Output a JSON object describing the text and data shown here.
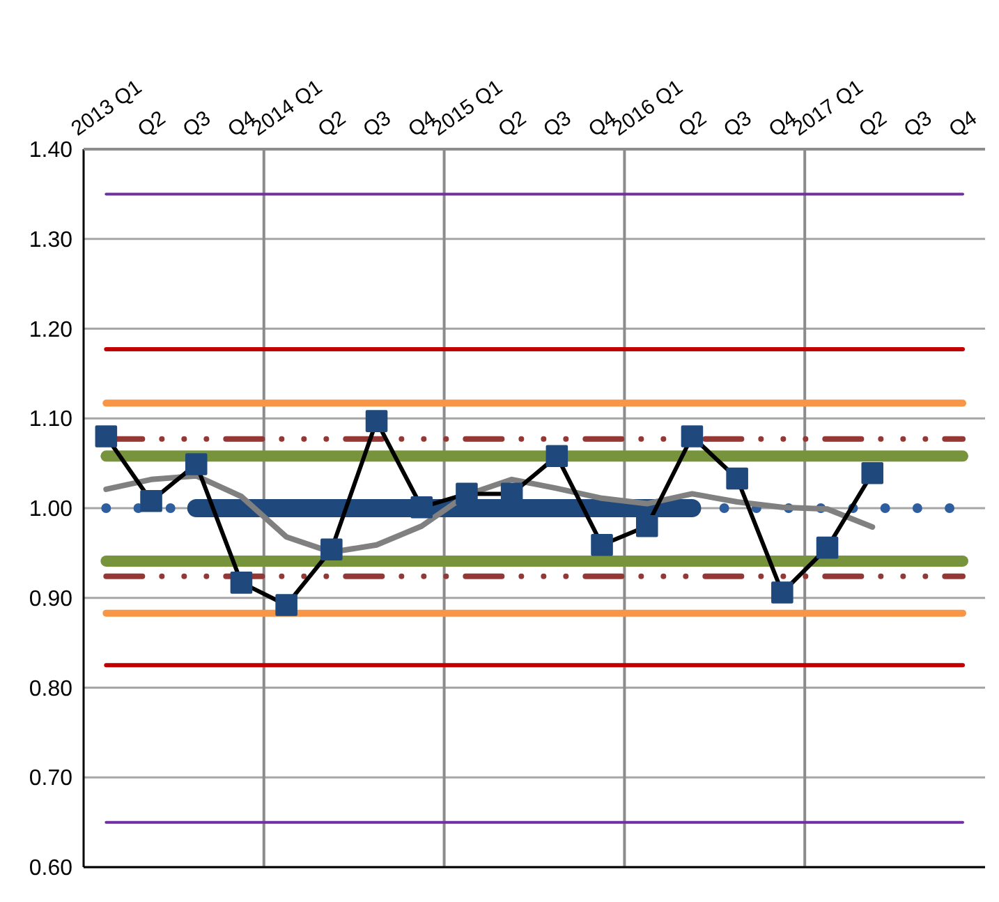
{
  "chart_data": {
    "type": "line",
    "categories": [
      "2013 Q1",
      "Q2",
      "Q3",
      "Q4",
      "2014 Q1",
      "Q2",
      "Q3",
      "Q4",
      "2015 Q1",
      "Q2",
      "Q3",
      "Q4",
      "2016 Q1",
      "Q2",
      "Q3",
      "Q4",
      "2017 Q1",
      "Q2",
      "Q3",
      "Q4"
    ],
    "series": [
      {
        "color": "#2e5e9e",
        "line_style": "dotted",
        "values": [
          1,
          1,
          1,
          null,
          null,
          null,
          null,
          null,
          null,
          null,
          null,
          null,
          null,
          1,
          1,
          1,
          1,
          1,
          1,
          1
        ]
      },
      {
        "color": "#1f497d",
        "line_style": "solid",
        "values": [
          null,
          null,
          1,
          1,
          1,
          1,
          1,
          1,
          1,
          1,
          1,
          1,
          1,
          1,
          null,
          null,
          null,
          null,
          null,
          null
        ]
      },
      {
        "color": "#808080",
        "line_style": "solid",
        "values": [
          1.021,
          1.032,
          1.036,
          1.013,
          0.968,
          0.951,
          0.959,
          0.98,
          1.015,
          1.032,
          1.022,
          1.011,
          1.005,
          1.016,
          1.007,
          1.001,
          0.999,
          0.979,
          null,
          null
        ]
      },
      {
        "color": "#000000",
        "line_style": "solid",
        "values": [
          1.08,
          1.008,
          1.049,
          0.917,
          0.892,
          0.954,
          1.097,
          1.001,
          1.016,
          1.016,
          1.058,
          0.959,
          0.98,
          1.08,
          1.033,
          0.906,
          0.956,
          1.039,
          null,
          null
        ]
      },
      {
        "type": "scatter",
        "color": "#1f497d",
        "marker": "square",
        "values": [
          1.08,
          1.008,
          1.049,
          0.917,
          0.892,
          0.954,
          1.097,
          1.001,
          1.016,
          1.016,
          1.058,
          0.959,
          0.98,
          1.08,
          1.033,
          0.906,
          0.956,
          1.039,
          null,
          null
        ]
      }
    ],
    "ylim": [
      0.6,
      1.4
    ],
    "yticks": [
      {
        "value": 0.6,
        "label": "0.60"
      },
      {
        "value": 0.7,
        "label": "0.70"
      },
      {
        "value": 0.8,
        "label": "0.80"
      },
      {
        "value": 0.9,
        "label": "0.90"
      },
      {
        "value": 1.0,
        "label": "1.00"
      },
      {
        "value": 1.1,
        "label": "1.10"
      },
      {
        "value": 1.2,
        "label": "1.20"
      },
      {
        "value": 1.3,
        "label": "1.30"
      },
      {
        "value": 1.4,
        "label": "1.40"
      }
    ],
    "grid": true,
    "ref_lines": [
      {
        "axis": "y",
        "value": 1.35,
        "color": "#7030a0",
        "line_style": "solid"
      },
      {
        "axis": "y",
        "value": 0.65,
        "color": "#7030a0",
        "line_style": "solid"
      },
      {
        "axis": "y",
        "value": 1.177,
        "color": "#c00000",
        "line_style": "solid"
      },
      {
        "axis": "y",
        "value": 0.825,
        "color": "#c00000",
        "line_style": "solid"
      },
      {
        "axis": "y",
        "value": 1.117,
        "color": "#f79646",
        "line_style": "solid"
      },
      {
        "axis": "y",
        "value": 0.883,
        "color": "#f79646",
        "line_style": "solid"
      },
      {
        "axis": "y",
        "value": 1.058,
        "color": "#77933c",
        "line_style": "solid"
      },
      {
        "axis": "y",
        "value": 0.941,
        "color": "#77933c",
        "line_style": "solid"
      },
      {
        "axis": "y",
        "value": 1.077,
        "color": "#953735",
        "line_style": "dashed"
      },
      {
        "axis": "y",
        "value": 0.924,
        "color": "#953735",
        "line_style": "dashed"
      }
    ]
  }
}
